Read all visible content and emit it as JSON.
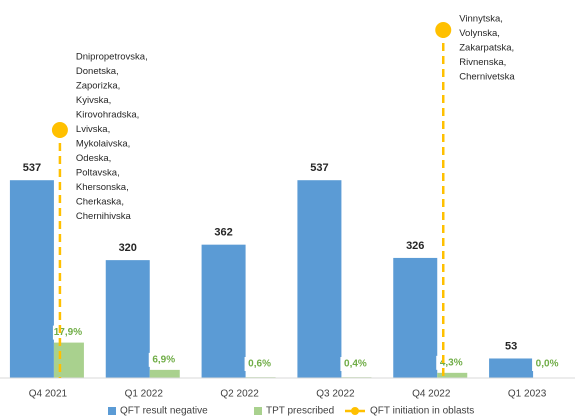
{
  "chart_data": {
    "type": "bar",
    "categories": [
      "Q4 2021",
      "Q1 2022",
      "Q2 2022",
      "Q3 2022",
      "Q4 2022",
      "Q1 2023"
    ],
    "ylim": [
      0,
      600
    ],
    "series": [
      {
        "name": "QFT result negative",
        "color": "#5b9bd5",
        "values": [
          537,
          320,
          362,
          537,
          326,
          53
        ]
      },
      {
        "name": "TPT prescribed",
        "color": "#a9d18e",
        "values": [
          17.9,
          6.9,
          0.6,
          0.4,
          4.3,
          0.0
        ],
        "value_labels": [
          "17,9%",
          "6,9%",
          "0,6%",
          "0,4%",
          "4,3%",
          "0,0%"
        ]
      }
    ],
    "marker_series": {
      "name": "QFT initiation in oblasts",
      "color": "#ffc000"
    },
    "annotations": [
      {
        "category": "Q4 2021",
        "lines": [
          "Dnipropetrovska,",
          "Donetska,",
          "Zaporizka,",
          "Kyivska,",
          "Kirovohradska,",
          "Lvivska,",
          "Mykolaivska,",
          "Odeska,",
          "Poltavska,",
          "Khersonska,",
          "Cherkaska,",
          "Chernihivska"
        ]
      },
      {
        "category": "Q4 2022",
        "lines": [
          "Vinnytska,",
          "Volynska,",
          "Zakarpatska,",
          "Rivnenska,",
          "Chernivetska"
        ]
      }
    ]
  }
}
